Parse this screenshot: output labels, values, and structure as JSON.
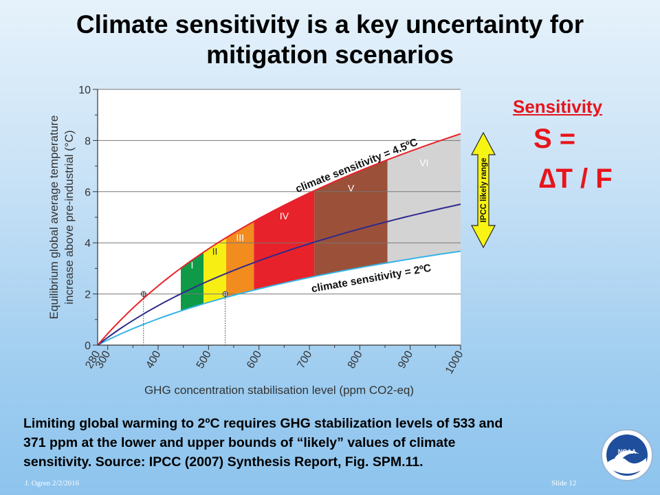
{
  "slide": {
    "title_line1": "Climate sensitivity is a key uncertainty for",
    "title_line2": "mitigation scenarios",
    "sensitivity_heading": "Sensitivity",
    "equation_line1": "S =",
    "equation_line2": "∆T / F",
    "caption_line1": "Limiting global warming to 2ºC requires GHG stabilization levels of 533 and",
    "caption_line2": "371 ppm at the lower and upper bounds of “likely” values of climate",
    "caption_line3": "sensitivity.  Source: IPCC (2007) Synthesis Report, Fig. SPM.11.",
    "footer_author": "J. Ogren  2/2/2016",
    "footer_slide": "Slide  12",
    "logo_text": "NOAA"
  },
  "colors": {
    "upper_curve": "#e8222a",
    "best_curve": "#2e2a8c",
    "lower_curve": "#36b3e8",
    "cat_I": "#0e9a47",
    "cat_II": "#f7ef14",
    "cat_III": "#f28c1f",
    "cat_IV": "#e8222a",
    "cat_V": "#9b5139",
    "cat_VI": "#d3d3d3",
    "arrow_fill": "#f7f314",
    "emphasis": "#e8141a"
  },
  "chart_data": {
    "type": "line",
    "xlabel": "GHG concentration stabilisation level (ppm CO2-eq)",
    "ylabel_line1": "Equilibrium global average temperature",
    "ylabel_line2": "increase above pre-industrial (°C)",
    "xlim": [
      280,
      1000
    ],
    "ylim": [
      0,
      10
    ],
    "x_ticks": [
      280,
      300,
      400,
      500,
      600,
      700,
      800,
      900,
      1000
    ],
    "y_ticks": [
      0,
      2,
      4,
      6,
      8,
      10
    ],
    "y_gridlines": [
      2,
      4,
      6,
      8,
      10
    ],
    "series": [
      {
        "name": "climate sensitivity = 4.5ºC",
        "climate_sensitivity": 4.5,
        "role": "upper"
      },
      {
        "name": "",
        "climate_sensitivity": 3.0,
        "role": "best"
      },
      {
        "name": "climate sensitivity = 2ºC",
        "climate_sensitivity": 2.0,
        "role": "lower"
      }
    ],
    "categories": [
      {
        "label": "I",
        "x_from": 445,
        "x_to": 490
      },
      {
        "label": "II",
        "x_from": 490,
        "x_to": 535
      },
      {
        "label": "III",
        "x_from": 535,
        "x_to": 590
      },
      {
        "label": "IV",
        "x_from": 590,
        "x_to": 710
      },
      {
        "label": "V",
        "x_from": 710,
        "x_to": 855
      },
      {
        "label": "VI",
        "x_from": 855,
        "x_to": 1000
      }
    ],
    "markers": [
      {
        "x": 371,
        "y": 2
      },
      {
        "x": 533,
        "y": 2
      }
    ],
    "arrow_label": "IPCC likely range"
  }
}
